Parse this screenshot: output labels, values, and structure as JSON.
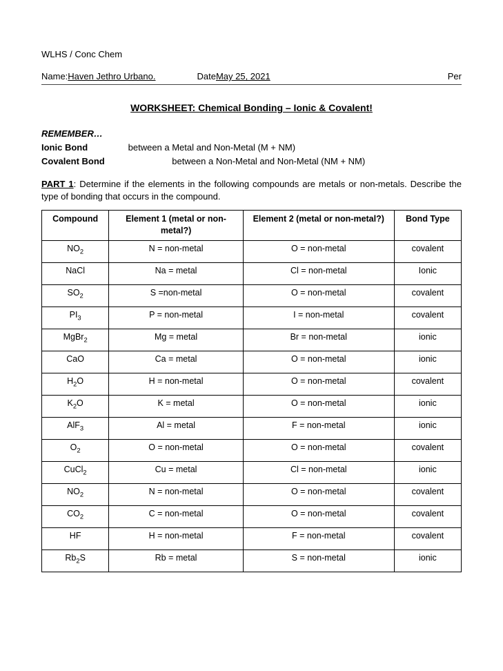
{
  "header": {
    "course": "WLHS / Conc Chem",
    "name_label": "Name:",
    "name_value": " Haven Jethro Urbano.",
    "date_label": "Date",
    "date_value": " May 25, 2021",
    "per_label": "Per"
  },
  "title": "WORKSHEET: Chemical Bonding – Ionic & Covalent!",
  "remember": "REMEMBER…",
  "ionic": {
    "label": "Ionic Bond",
    "text": "between a Metal and Non-Metal   (M + NM)"
  },
  "covalent": {
    "label": "Covalent Bond",
    "text": "between a Non-Metal and Non-Metal      (NM + NM)"
  },
  "part1": {
    "label": "PART 1",
    "text": ": Determine if the elements in the following compounds are metals or non-metals. Describe the type of bonding that occurs in the compound."
  },
  "table": {
    "headers": {
      "compound": "Compound",
      "el1": "Element 1 (metal or non-metal?)",
      "el2": "Element 2 (metal or non-metal?)",
      "bond": "Bond Type"
    },
    "rows": [
      {
        "compound": "NO<sub>2</sub>",
        "el1": "N = non-metal",
        "el2": "O = non-metal",
        "bond": "covalent"
      },
      {
        "compound": "NaCl",
        "el1": "Na = metal",
        "el2": "Cl = non-metal",
        "bond": "Ionic"
      },
      {
        "compound": "SO<sub>2</sub>",
        "el1": "S =non-metal",
        "el2": "O = non-metal",
        "bond": "covalent"
      },
      {
        "compound": "PI<sub>3</sub>",
        "el1": "P = non-metal",
        "el2": "I = non-metal",
        "bond": "covalent"
      },
      {
        "compound": "MgBr<sub>2</sub>",
        "el1": "Mg = metal",
        "el2": "Br = non-metal",
        "bond": "ionic"
      },
      {
        "compound": "CaO",
        "el1": "Ca = metal",
        "el2": "O = non-metal",
        "bond": "ionic"
      },
      {
        "compound": "H<sub>2</sub>O",
        "el1": "H = non-metal",
        "el2": "O = non-metal",
        "bond": "covalent"
      },
      {
        "compound": "K<sub>2</sub>O",
        "el1": "K = metal",
        "el2": "O = non-metal",
        "bond": "ionic"
      },
      {
        "compound": "AlF<sub>3</sub>",
        "el1": "Al = metal",
        "el2": "F = non-metal",
        "bond": "ionic"
      },
      {
        "compound": "O<sub>2</sub>",
        "el1": "O = non-metal",
        "el2": "O = non-metal",
        "bond": "covalent"
      },
      {
        "compound": "CuCl<sub>2</sub>",
        "el1": "Cu = metal",
        "el2": "Cl = non-metal",
        "bond": "ionic"
      },
      {
        "compound": "NO<sub>2</sub>",
        "el1": "N = non-metal",
        "el2": "O = non-metal",
        "bond": "covalent"
      },
      {
        "compound": "CO<sub>2</sub>",
        "el1": "C = non-metal",
        "el2": "O = non-metal",
        "bond": "covalent"
      },
      {
        "compound": "HF",
        "el1": "H = non-metal",
        "el2": "F = non-metal",
        "bond": "covalent"
      },
      {
        "compound": "Rb<sub>2</sub>S",
        "el1": "Rb = metal",
        "el2": "S = non-metal",
        "bond": "ionic"
      }
    ]
  }
}
